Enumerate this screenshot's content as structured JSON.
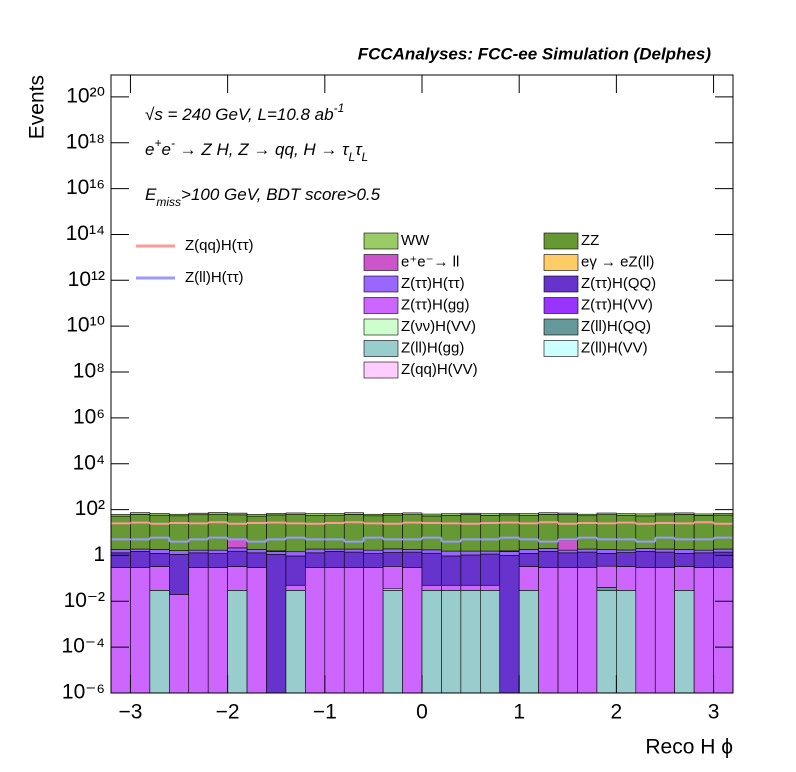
{
  "chart_data": {
    "type": "stacked-histogram",
    "title": "FCCAnalyses: FCC-ee Simulation (Delphes)",
    "x_label": "Reco H ϕ",
    "y_label": "Events",
    "log_y": true,
    "annotations": [
      {
        "parts": [
          "√s = 240 GeV, L=10.8 ab",
          "-1"
        ],
        "scripts": [
          "base",
          "sup"
        ]
      },
      {
        "parts": [
          "e",
          "+",
          "e",
          "-",
          " → Z H, Z  → qq, H  → τ",
          "L",
          "τ",
          "L"
        ],
        "scripts": [
          "base",
          "sup",
          "base",
          "sup",
          "base",
          "sub",
          "base",
          "sub"
        ]
      },
      {
        "parts": [
          "E",
          "miss",
          ">100 GeV, BDT score>0.5"
        ],
        "scripts": [
          "base",
          "sub",
          "base"
        ]
      }
    ],
    "bins": [
      -3.2,
      -3.0,
      -2.8,
      -2.6,
      -2.4,
      -2.2,
      -2.0,
      -1.8,
      -1.6,
      -1.4,
      -1.2,
      -1.0,
      -0.8,
      -0.6,
      -0.4,
      -0.2,
      0,
      0.2,
      0.4,
      0.6,
      0.8,
      1.0,
      1.2,
      1.4,
      1.6,
      1.8,
      2.0,
      2.2,
      2.4,
      2.6,
      2.8,
      3.0,
      3.2
    ],
    "xlim": [
      -3.2,
      3.2
    ],
    "xticks": [
      {
        "value": -3,
        "label": "−3"
      },
      {
        "value": -2,
        "label": "−2"
      },
      {
        "value": -1,
        "label": "−1"
      },
      0,
      1,
      2,
      3
    ],
    "ylim": [
      1e-06,
      9e+20
    ],
    "yticks": [
      {
        "value": 1e-06,
        "label": "10⁻⁶"
      },
      {
        "value": 0.0001,
        "label": "10⁻⁴"
      },
      {
        "value": 0.01,
        "label": "10⁻²"
      },
      1,
      {
        "value": 100,
        "label": "10²"
      },
      {
        "value": 10000.0,
        "label": "10⁴"
      },
      {
        "value": 1000000.0,
        "label": "10⁶"
      },
      {
        "value": 100000000.0,
        "label": "10⁸"
      },
      {
        "value": 10000000000.0,
        "label": "10¹⁰"
      },
      {
        "value": 1000000000000.0,
        "label": "10¹²"
      },
      {
        "value": 100000000000000.0,
        "label": "10¹⁴"
      },
      {
        "value": 1e+16,
        "label": "10¹⁶"
      },
      {
        "value": 1e+18,
        "label": "10¹⁸"
      },
      {
        "value": 1e+20,
        "label": "10²⁰"
      }
    ],
    "series": [
      {
        "name": "WW",
        "color": "#99cc66",
        "values": [
          10,
          12,
          11,
          9,
          10,
          12,
          11,
          10,
          9,
          11,
          12,
          10,
          11,
          9,
          10,
          12,
          11,
          10,
          9,
          11,
          10,
          12,
          11,
          10,
          9,
          11,
          10,
          12,
          11,
          10,
          9,
          11
        ]
      },
      {
        "name": "ZZ",
        "color": "#669933",
        "values": [
          50,
          60,
          55,
          52,
          58,
          61,
          54,
          50,
          57,
          59,
          53,
          55,
          60,
          52,
          56,
          58,
          51,
          55,
          59,
          54,
          57,
          53,
          60,
          56,
          52,
          58,
          55,
          51,
          57,
          60,
          54,
          56
        ]
      },
      {
        "name": "e⁺e⁻→ ll",
        "color": "#cc55cc",
        "values": [
          0,
          0,
          0,
          0,
          0,
          0,
          3,
          0,
          0,
          0,
          0,
          0,
          0,
          0,
          0,
          0,
          0,
          0,
          0,
          0,
          0,
          0,
          0,
          3,
          0,
          0,
          0,
          0,
          0,
          0,
          0,
          0
        ]
      },
      {
        "name": "eγ → eZ(ll)",
        "color": "#ffcc66",
        "values": [
          0,
          0,
          0,
          0,
          0,
          0,
          0,
          0,
          0.08,
          0,
          0,
          0,
          0,
          0,
          0,
          0,
          0,
          0,
          0,
          0,
          0.08,
          0,
          0,
          0,
          0,
          0,
          0,
          0,
          0,
          0,
          0,
          0
        ]
      },
      {
        "name": "Z(ττ)H(ττ)",
        "color": "#9966ff",
        "values": [
          0.5,
          0.4,
          0.6,
          0.5,
          0.4,
          0.5,
          0.6,
          0.5,
          0.4,
          0.5,
          0.6,
          0.4,
          0.5,
          0.5,
          0.6,
          0.4,
          0.5,
          0.6,
          0.5,
          0.4,
          0.5,
          0.6,
          0.5,
          0.4,
          0.5,
          0.6,
          0.4,
          0.5,
          0.5,
          0.6,
          0.4,
          0.5
        ]
      },
      {
        "name": "Z(ττ)H(QQ)",
        "color": "#6633cc",
        "values": [
          1.0,
          1.2,
          0.9,
          1.1,
          1.0,
          0.9,
          1.2,
          1.0,
          1.1,
          0.9,
          1.0,
          1.2,
          1.1,
          0.9,
          1.0,
          1.1,
          1.2,
          0.9,
          1.0,
          1.1,
          1.0,
          0.9,
          1.2,
          1.0,
          1.1,
          0.9,
          1.0,
          1.2,
          1.1,
          0.9,
          1.0,
          1.1
        ]
      },
      {
        "name": "Z(ττ)H(gg)",
        "color": "#cc66ff",
        "values": [
          0.3,
          0.3,
          0.3,
          0.02,
          0.3,
          0.3,
          0.3,
          0.3,
          0,
          0.02,
          0.3,
          0.3,
          0.3,
          0.3,
          0.3,
          0.3,
          0.02,
          0.02,
          0.02,
          0.02,
          0,
          0.3,
          0.3,
          0.3,
          0.3,
          0.3,
          0.3,
          0.3,
          0.3,
          0.3,
          0.3,
          0.3
        ]
      },
      {
        "name": "Z(ττ)H(VV)",
        "color": "#9933ff",
        "values": [
          0,
          0,
          0,
          0,
          0,
          0,
          0,
          0,
          0,
          0,
          0,
          0,
          0,
          0,
          0,
          0,
          0,
          0,
          0,
          0,
          0,
          0,
          0,
          0,
          0,
          0,
          0,
          0,
          0,
          0,
          0,
          0
        ]
      },
      {
        "name": "Z(νν)H(VV)",
        "color": "#ccffcc",
        "values": [
          0,
          0,
          0,
          0,
          0,
          0,
          0,
          0,
          0,
          0,
          0,
          0,
          0,
          0,
          0.005,
          0,
          0,
          0,
          0,
          0,
          0,
          0,
          0,
          0,
          0,
          0,
          0,
          0,
          0,
          0,
          0,
          0
        ]
      },
      {
        "name": "Z(ll)H(QQ)",
        "color": "#669999",
        "values": [
          0,
          0,
          0,
          0,
          0,
          0,
          0,
          0,
          0,
          0,
          0,
          0,
          0,
          0,
          0,
          0,
          0,
          0,
          0,
          0,
          0,
          0,
          0,
          0,
          0,
          0.01,
          0,
          0,
          0,
          0,
          0,
          0
        ]
      },
      {
        "name": "Z(ll)H(gg)",
        "color": "#99cccc",
        "values": [
          0,
          0,
          0.03,
          0,
          0,
          0,
          0.03,
          0,
          0,
          0.03,
          0,
          0,
          0,
          0,
          0.03,
          0,
          0.03,
          0.03,
          0.03,
          0.03,
          0,
          0.03,
          0,
          0,
          0,
          0.03,
          0.03,
          0,
          0,
          0.03,
          0,
          0
        ]
      },
      {
        "name": "Z(ll)H(VV)",
        "color": "#ccffff",
        "values": [
          0,
          0,
          0,
          0,
          0,
          0,
          0,
          0,
          0,
          0,
          0,
          0,
          0,
          0,
          0,
          0,
          0,
          0,
          0,
          0,
          0,
          0,
          0,
          0,
          0,
          0,
          0,
          0,
          0,
          0,
          0,
          0
        ]
      },
      {
        "name": "Z(qq)H(VV)",
        "color": "#ffccff",
        "values": [
          0,
          0,
          0,
          0,
          0,
          0,
          0,
          0,
          0,
          0,
          0,
          0,
          0,
          0,
          0,
          0,
          0,
          0,
          0,
          0,
          0,
          0,
          0,
          0,
          0,
          0,
          0,
          0,
          0,
          0,
          0,
          0
        ]
      },
      {
        "name": "Z(qq)H(ττ)",
        "color": "#ff9999",
        "style": "line",
        "values": [
          25,
          27,
          24,
          26,
          25,
          28,
          24,
          26,
          27,
          25,
          24,
          26,
          28,
          25,
          24,
          27,
          26,
          25,
          24,
          26,
          27,
          25,
          28,
          24,
          26,
          25,
          27,
          24,
          26,
          25,
          28,
          24
        ]
      },
      {
        "name": "Z(ll)H(ττ)",
        "color": "#9999ff",
        "style": "line",
        "values": [
          5,
          5,
          6,
          4,
          5,
          6,
          5,
          4,
          5,
          6,
          5,
          5,
          4,
          6,
          5,
          5,
          6,
          4,
          5,
          5,
          6,
          5,
          4,
          5,
          6,
          5,
          5,
          4,
          6,
          5,
          5,
          6
        ]
      }
    ]
  }
}
